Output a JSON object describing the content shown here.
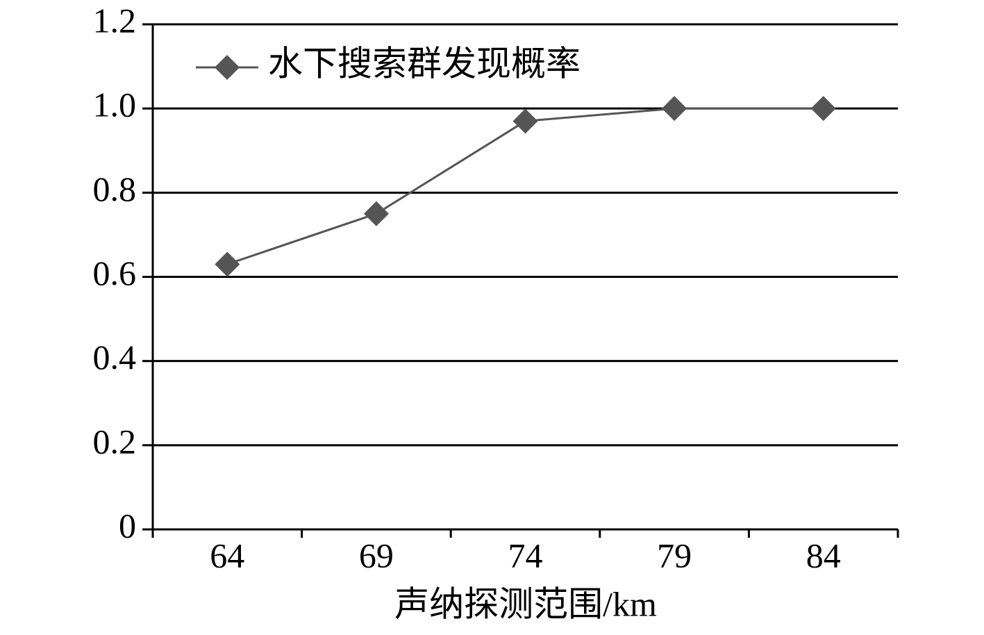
{
  "chart_data": {
    "type": "line",
    "x_label": "声纳探测范围/km",
    "categories": [
      "64",
      "69",
      "74",
      "79",
      "84"
    ],
    "series": [
      {
        "name": "水下搜索群发现概率",
        "color": "#555555",
        "values": [
          0.63,
          0.75,
          0.97,
          1.0,
          1.0
        ]
      }
    ],
    "ylim": [
      0,
      1.2
    ],
    "yticks": [
      0,
      0.2,
      0.4,
      0.6,
      0.8,
      {
        "value": 1,
        "label": "1.0"
      },
      1.2
    ],
    "grid": true,
    "legend": "upper left"
  }
}
